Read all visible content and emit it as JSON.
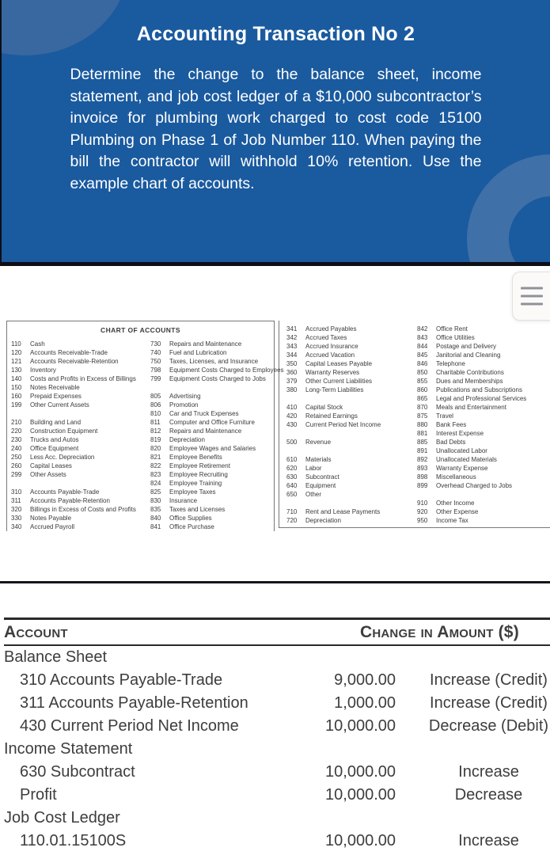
{
  "banner": {
    "title": "Accounting Transaction No 2",
    "body": "Determine the change to the balance sheet, income statement, and job cost ledger of a $10,000 subcontractor’s invoice for plumbing work charged to cost code 15100 Plumbing on Phase 1 of Job Number 110. When paying the bill the contractor will withhold 10% retention. Use the example chart of accounts."
  },
  "menu": {
    "icon": "hamburger-menu-icon"
  },
  "colors": {
    "banner_background": "#1a5a9f",
    "banner_shape": "#3f70a8",
    "separator_line": "#14151d",
    "chart_text": "#3a3a3a",
    "table_text": "#3e3d3d",
    "menu_bar": "#90909a"
  },
  "chart_of_accounts": {
    "title": "CHART OF ACCOUNTS",
    "columns": [
      [
        [
          [
            "110",
            "Cash"
          ],
          [
            "120",
            "Accounts Receivable-Trade"
          ],
          [
            "121",
            "Accounts Receivable-Retention"
          ],
          [
            "130",
            "Inventory"
          ],
          [
            "140",
            "Costs and Profits in Excess of Billings"
          ],
          [
            "150",
            "Notes Receivable"
          ],
          [
            "160",
            "Prepaid Expenses"
          ],
          [
            "199",
            "Other Current Assets"
          ]
        ],
        [
          [
            "210",
            "Building and Land"
          ],
          [
            "220",
            "Construction Equipment"
          ],
          [
            "230",
            "Trucks and Autos"
          ],
          [
            "240",
            "Office Equipment"
          ],
          [
            "250",
            "Less Acc. Depreciation"
          ],
          [
            "260",
            "Capital Leases"
          ],
          [
            "299",
            "Other Assets"
          ]
        ],
        [
          [
            "310",
            "Accounts Payable-Trade"
          ],
          [
            "311",
            "Accounts Payable-Retention"
          ],
          [
            "320",
            "Billings in Excess of Costs and Profits"
          ],
          [
            "330",
            "Notes Payable"
          ],
          [
            "340",
            "Accrued Payroll"
          ]
        ]
      ],
      [
        [
          [
            "730",
            "Repairs and Maintenance"
          ],
          [
            "740",
            "Fuel and Lubrication"
          ],
          [
            "750",
            "Taxes, Licenses, and Insurance"
          ],
          [
            "798",
            "Equipment Costs Charged to Employees"
          ],
          [
            "799",
            "Equipment Costs Charged to Jobs"
          ]
        ],
        [
          [
            "805",
            "Advertising"
          ],
          [
            "806",
            "Promotion"
          ],
          [
            "810",
            "Car and Truck Expenses"
          ],
          [
            "811",
            "Computer and Office Furniture"
          ],
          [
            "812",
            "Repairs and Maintenance"
          ],
          [
            "819",
            "Depreciation"
          ],
          [
            "820",
            "Employee Wages and Salaries"
          ],
          [
            "821",
            "Employee Benefits"
          ],
          [
            "822",
            "Employee Retirement"
          ],
          [
            "823",
            "Employee Recruiting"
          ],
          [
            "824",
            "Employee Training"
          ],
          [
            "825",
            "Employee Taxes"
          ],
          [
            "830",
            "Insurance"
          ],
          [
            "835",
            "Taxes and Licenses"
          ],
          [
            "840",
            "Office Supplies"
          ],
          [
            "841",
            "Office Purchase"
          ]
        ]
      ],
      [
        [
          [
            "341",
            "Accrued Payables"
          ],
          [
            "342",
            "Accrued Taxes"
          ],
          [
            "343",
            "Accrued Insurance"
          ],
          [
            "344",
            "Accrued Vacation"
          ],
          [
            "350",
            "Capital Leases Payable"
          ],
          [
            "360",
            "Warranty Reserves"
          ],
          [
            "379",
            "Other Current Liabilities"
          ],
          [
            "380",
            "Long-Term Liabilities"
          ]
        ],
        [
          [
            "410",
            "Capital Stock"
          ],
          [
            "420",
            "Retained Earnings"
          ],
          [
            "430",
            "Current Period Net Income"
          ]
        ],
        [
          [
            "500",
            "Revenue"
          ]
        ],
        [
          [
            "610",
            "Materials"
          ],
          [
            "620",
            "Labor"
          ],
          [
            "630",
            "Subcontract"
          ],
          [
            "640",
            "Equipment"
          ],
          [
            "650",
            "Other"
          ]
        ],
        [
          [
            "710",
            "Rent and Lease Payments"
          ],
          [
            "720",
            "Depreciation"
          ]
        ]
      ],
      [
        [
          [
            "842",
            "Office Rent"
          ],
          [
            "843",
            "Office Utilities"
          ],
          [
            "844",
            "Postage and Delivery"
          ],
          [
            "845",
            "Janitorial and Cleaning"
          ],
          [
            "846",
            "Telephone"
          ],
          [
            "850",
            "Charitable Contributions"
          ],
          [
            "855",
            "Dues and Memberships"
          ],
          [
            "860",
            "Publications and Subscriptions"
          ],
          [
            "865",
            "Legal and Professional Services"
          ],
          [
            "870",
            "Meals and Entertainment"
          ],
          [
            "875",
            "Travel"
          ],
          [
            "880",
            "Bank Fees"
          ],
          [
            "881",
            "Interest Expense"
          ],
          [
            "885",
            "Bad Debts"
          ],
          [
            "891",
            "Unallocated Labor"
          ],
          [
            "892",
            "Unallocated Materials"
          ],
          [
            "893",
            "Warranty Expense"
          ],
          [
            "898",
            "Miscellaneous"
          ],
          [
            "899",
            "Overhead Charged to Jobs"
          ]
        ],
        [
          [
            "910",
            "Other Income"
          ],
          [
            "920",
            "Other Expense"
          ],
          [
            "950",
            "Income Tax"
          ]
        ]
      ]
    ]
  },
  "answer_table": {
    "account_header": "Account",
    "change_header": "Change in Amount ($)",
    "sections": [
      {
        "title": "Balance Sheet",
        "rows": [
          {
            "account": "310 Accounts Payable-Trade",
            "amount": "9,000.00",
            "change": "Increase (Credit)"
          },
          {
            "account": "311 Accounts Payable-Retention",
            "amount": "1,000.00",
            "change": "Increase (Credit)"
          },
          {
            "account": "430 Current Period Net Income",
            "amount": "10,000.00",
            "change": "Decrease (Debit)"
          }
        ]
      },
      {
        "title": "Income Statement",
        "rows": [
          {
            "account": "630 Subcontract",
            "amount": "10,000.00",
            "change": "Increase"
          },
          {
            "account": "Profit",
            "amount": "10,000.00",
            "change": "Decrease"
          }
        ]
      },
      {
        "title": "Job Cost Ledger",
        "rows": [
          {
            "account": "110.01.15100S",
            "amount": "10,000.00",
            "change": "Increase"
          }
        ]
      }
    ]
  }
}
